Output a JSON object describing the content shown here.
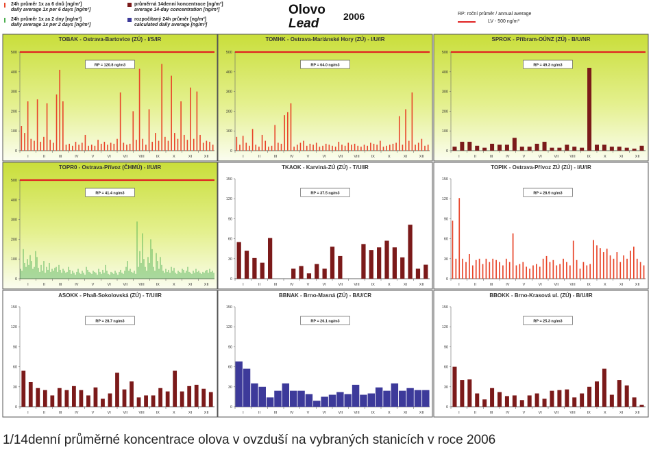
{
  "header": {
    "title_cz": "Olovo",
    "title_en": "Lead",
    "year": "2006",
    "legend": [
      {
        "line1": "24h průměr 1x za 6 dnů [ng/m³]",
        "line2": "daily average 1x per 6 days [ng/m³]",
        "color": "#e8452a",
        "kind": "line"
      },
      {
        "line1": "24h průměr 1x za 2 dny [ng/m³]",
        "line2": "daily average 1x per 2 days [ng/m³]",
        "color": "#4caf50",
        "kind": "line"
      },
      {
        "line1": "průměrná 14denní koncentrace [ng/m³]",
        "line2": "average 14-day concentration [ng/m³]",
        "color": "#7b1a1a",
        "kind": "box"
      },
      {
        "line1": "rozpočítaný 24h průměr [ng/m³]",
        "line2": "calculated daily average [ng/m³]",
        "color": "#3d3a9a",
        "kind": "box"
      }
    ],
    "rp_legend": {
      "line1": "RP: roční průměr / annual average",
      "line2": "LV   - 500 ng/m³",
      "color": "#e02020"
    }
  },
  "caption": "1/14denní průměrné koncentrace olova v ovzduší na vybraných stanicích v roce 2006",
  "chart_data": [
    {
      "type": "bar",
      "title": "TOBAK - Ostrava-Bartovice (ZÚ) - I/S/IR",
      "rp": "RP = 120.8 ng/m3",
      "series_kind": "daily6",
      "color": "#e8452a",
      "ylim": [
        0,
        500
      ],
      "yticks": [
        0,
        100,
        200,
        300,
        400,
        500
      ],
      "limit_value": 500,
      "background": "green",
      "months": [
        "I",
        "II",
        "III",
        "IV",
        "V",
        "VI",
        "VII",
        "VIII",
        "IX",
        "X",
        "XI",
        "XII"
      ],
      "values": [
        125,
        90,
        250,
        60,
        50,
        260,
        45,
        70,
        240,
        55,
        40,
        285,
        410,
        250,
        30,
        35,
        25,
        45,
        30,
        40,
        80,
        25,
        30,
        25,
        55,
        35,
        45,
        30,
        40,
        35,
        60,
        295,
        40,
        30,
        35,
        200,
        55,
        415,
        60,
        30,
        210,
        45,
        90,
        50,
        440,
        70,
        50,
        380,
        90,
        60,
        250,
        80,
        55,
        320,
        60,
        300,
        80,
        40,
        50,
        45,
        30
      ]
    },
    {
      "type": "bar",
      "title": "TOMHK - Ostrava-Mariánské Hory (ZÚ) - I/U/IR",
      "rp": "RP = 64.0 ng/m3",
      "series_kind": "daily6",
      "color": "#e8452a",
      "ylim": [
        0,
        500
      ],
      "yticks": [
        0,
        100,
        200,
        300,
        400,
        500
      ],
      "limit_value": 500,
      "background": "green",
      "months": [
        "I",
        "II",
        "III",
        "IV",
        "V",
        "VI",
        "VII",
        "VIII",
        "IX",
        "X",
        "XI",
        "XII"
      ],
      "values": [
        70,
        30,
        75,
        40,
        25,
        110,
        30,
        20,
        80,
        50,
        20,
        25,
        130,
        40,
        35,
        180,
        195,
        240,
        20,
        30,
        40,
        50,
        25,
        35,
        30,
        40,
        20,
        25,
        35,
        30,
        25,
        20,
        45,
        30,
        25,
        40,
        30,
        35,
        25,
        20,
        30,
        25,
        40,
        35,
        30,
        50,
        20,
        25,
        30,
        35,
        40,
        175,
        30,
        210,
        50,
        295,
        30,
        40,
        60,
        25,
        30
      ]
    },
    {
      "type": "bar",
      "title": "SPROK - Příbram-OÚNZ (ZÚ) - B/U/NR",
      "rp": "RP = 49.3 ng/m3",
      "series_kind": "14day",
      "color": "#7b1a1a",
      "ylim": [
        0,
        500
      ],
      "yticks": [
        0,
        100,
        200,
        300,
        400,
        500
      ],
      "limit_value": 500,
      "background": "green",
      "months": [
        "I",
        "II",
        "III",
        "IV",
        "V",
        "VI",
        "VII",
        "VIII",
        "IX",
        "X",
        "XI",
        "XII"
      ],
      "values": [
        20,
        45,
        45,
        25,
        15,
        35,
        30,
        30,
        65,
        20,
        20,
        35,
        45,
        15,
        15,
        30,
        20,
        15,
        420,
        30,
        30,
        20,
        20,
        15,
        10,
        25
      ]
    },
    {
      "type": "bar",
      "title": "TOPR0 - Ostrava-Přívoz (ČHMÚ) - I/U/IR",
      "rp": "RP = 41.4 ng/m3",
      "series_kind": "daily2",
      "color": "#4caf50",
      "ylim": [
        0,
        500
      ],
      "yticks": [
        0,
        100,
        200,
        300,
        400,
        500
      ],
      "limit_value": 500,
      "background": "green",
      "months": [
        "I",
        "II",
        "III",
        "IV",
        "V",
        "VI",
        "VII",
        "VIII",
        "IX",
        "X",
        "XI",
        "XII"
      ],
      "values": [
        50,
        40,
        150,
        80,
        60,
        100,
        70,
        120,
        90,
        50,
        60,
        140,
        110,
        55,
        35,
        70,
        40,
        90,
        30,
        60,
        45,
        80,
        35,
        50,
        40,
        55,
        60,
        35,
        70,
        45,
        30,
        50,
        40,
        30,
        35,
        60,
        45,
        25,
        40,
        30,
        20,
        35,
        50,
        30,
        25,
        40,
        30,
        20,
        60,
        45,
        35,
        30,
        25,
        40,
        35,
        30,
        20,
        50,
        35,
        25,
        45,
        30,
        70,
        40,
        25,
        20,
        35,
        30,
        25,
        40,
        30,
        20,
        35,
        45,
        30,
        25,
        40,
        60,
        90,
        40,
        50,
        35,
        30,
        40,
        25,
        290,
        60,
        140,
        80,
        230,
        100,
        60,
        40,
        110,
        80,
        200,
        150,
        60,
        40,
        130,
        90,
        50,
        110,
        70,
        40,
        30,
        50,
        35,
        45,
        30,
        60,
        40,
        55,
        30,
        25,
        40,
        35,
        30,
        50,
        45,
        30,
        40,
        60,
        35,
        30,
        25,
        40,
        30,
        50,
        35,
        40,
        30,
        25,
        35,
        30,
        40,
        45,
        30,
        50,
        35,
        40,
        30
      ]
    },
    {
      "type": "bar",
      "title": "TKAOK - Karviná-ZÚ (ZÚ) - T/U/IR",
      "rp": "RP = 37.5 ng/m3",
      "series_kind": "14day",
      "color": "#7b1a1a",
      "ylim": [
        0,
        150
      ],
      "yticks": [
        0,
        30,
        60,
        90,
        120,
        150
      ],
      "background": "white",
      "months": [
        "I",
        "II",
        "III",
        "IV",
        "V",
        "VI",
        "VII",
        "VIII",
        "IX",
        "X",
        "XI",
        "XII"
      ],
      "values": [
        55,
        42,
        31,
        24,
        61,
        0,
        0,
        15,
        19,
        8,
        22,
        15,
        48,
        34,
        0,
        0,
        52,
        43,
        47,
        57,
        47,
        32,
        81,
        15,
        21
      ]
    },
    {
      "type": "bar",
      "title": "TOPIK - Ostrava-Přívoz ZÚ (ZÚ) - I/U/IR",
      "rp": "RP = 28.9 ng/m3",
      "series_kind": "daily6",
      "color": "#e8452a",
      "ylim": [
        0,
        150
      ],
      "yticks": [
        0,
        30,
        60,
        90,
        120,
        150
      ],
      "background": "white",
      "months": [
        "I",
        "II",
        "III",
        "IV",
        "V",
        "VI",
        "VII",
        "VIII",
        "IX",
        "X",
        "XI",
        "XII"
      ],
      "values": [
        87,
        30,
        121,
        30,
        25,
        37,
        20,
        28,
        30,
        22,
        30,
        25,
        30,
        28,
        25,
        20,
        30,
        25,
        68,
        20,
        22,
        25,
        18,
        15,
        20,
        22,
        18,
        30,
        34,
        25,
        28,
        20,
        22,
        30,
        25,
        20,
        57,
        28,
        15,
        25,
        20,
        22,
        58,
        50,
        46,
        40,
        45,
        35,
        30,
        40,
        25,
        35,
        30,
        42,
        48,
        30,
        25,
        20
      ]
    },
    {
      "type": "bar",
      "title": "ASOKK - Pha8-Sokolovská (ZÚ) - T/U/IR",
      "rp": "RP = 28.7 ng/m3",
      "series_kind": "14day",
      "color": "#7b1a1a",
      "ylim": [
        0,
        150
      ],
      "yticks": [
        0,
        30,
        60,
        90,
        120,
        150
      ],
      "background": "white",
      "months": [
        "I",
        "II",
        "III",
        "IV",
        "V",
        "VI",
        "VII",
        "VIII",
        "IX",
        "X",
        "XI",
        "XII"
      ],
      "values": [
        54,
        37,
        28,
        25,
        17,
        28,
        25,
        31,
        25,
        17,
        29,
        12,
        20,
        51,
        26,
        38,
        14,
        17,
        17,
        28,
        23,
        54,
        23,
        31,
        33,
        27,
        22
      ]
    },
    {
      "type": "bar",
      "title": "BBNAK - Brno-Masná (ZÚ) - B/U/CR",
      "rp": "RP = 26.1 ng/m3",
      "series_kind": "calc",
      "color": "#3d3a9a",
      "ylim": [
        0,
        150
      ],
      "yticks": [
        0,
        30,
        60,
        90,
        120,
        150
      ],
      "background": "white",
      "months": [
        "I",
        "II",
        "III",
        "IV",
        "V",
        "VI",
        "VII",
        "VIII",
        "IX",
        "X",
        "XI",
        "XII"
      ],
      "values": [
        68,
        57,
        35,
        30,
        14,
        24,
        35,
        24,
        24,
        19,
        9,
        15,
        18,
        22,
        19,
        33,
        18,
        20,
        29,
        24,
        35,
        24,
        28,
        25,
        25
      ]
    },
    {
      "type": "bar",
      "title": "BBOKK - Brno-Krasová ul. (ZÚ) - B/U/IR",
      "rp": "RP = 25.3 ng/m3",
      "series_kind": "14day",
      "color": "#7b1a1a",
      "ylim": [
        0,
        150
      ],
      "yticks": [
        0,
        30,
        60,
        90,
        120,
        150
      ],
      "background": "white",
      "months": [
        "I",
        "II",
        "III",
        "IV",
        "V",
        "VI",
        "VII",
        "VIII",
        "IX",
        "X",
        "XI",
        "XII"
      ],
      "values": [
        60,
        40,
        41,
        20,
        11,
        28,
        22,
        16,
        17,
        10,
        17,
        20,
        12,
        24,
        25,
        26,
        14,
        20,
        30,
        38,
        57,
        18,
        40,
        32,
        14,
        3
      ]
    }
  ]
}
